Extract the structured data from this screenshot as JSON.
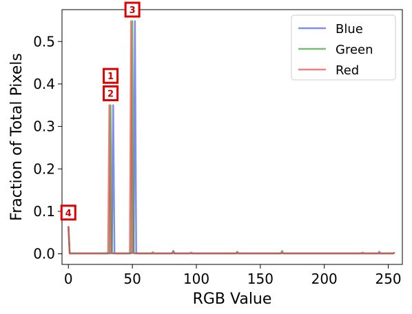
{
  "chart_data": {
    "type": "line",
    "title": "",
    "xlabel": "RGB Value",
    "ylabel": "Fraction of Total Pixels",
    "xlim": [
      -5,
      261
    ],
    "ylim": [
      -0.025,
      0.575
    ],
    "xticks": [
      0,
      50,
      100,
      150,
      200,
      250
    ],
    "yticks": [
      0.0,
      0.1,
      0.2,
      0.3,
      0.4,
      0.5
    ],
    "grid": false,
    "legend_position": "top-right",
    "series": [
      {
        "name": "Blue",
        "color": "#4a5ae8",
        "points": [
          [
            0,
            0.065
          ],
          [
            1,
            0.001
          ],
          [
            33,
            0.001
          ],
          [
            34,
            0.002
          ],
          [
            35,
            0.35
          ],
          [
            36,
            0.002
          ],
          [
            37,
            0.001
          ],
          [
            49,
            0.001
          ],
          [
            50,
            0.002
          ],
          [
            51,
            0.003
          ],
          [
            52,
            0.548
          ],
          [
            53,
            0.003
          ],
          [
            54,
            0.001
          ],
          [
            81,
            0.001
          ],
          [
            82,
            0.007
          ],
          [
            83,
            0.001
          ],
          [
            95,
            0.001
          ],
          [
            96,
            0.003
          ],
          [
            97,
            0.001
          ],
          [
            131,
            0.001
          ],
          [
            132,
            0.003
          ],
          [
            133,
            0.001
          ],
          [
            166,
            0.001
          ],
          [
            167,
            0.003
          ],
          [
            168,
            0.001
          ],
          [
            229,
            0.001
          ],
          [
            230,
            0.003
          ],
          [
            231,
            0.001
          ],
          [
            242,
            0.001
          ],
          [
            243,
            0.005
          ],
          [
            244,
            0.001
          ],
          [
            254,
            0.001
          ],
          [
            255,
            0.003
          ]
        ]
      },
      {
        "name": "Green",
        "color": "#3aa03a",
        "points": [
          [
            0,
            0.065
          ],
          [
            1,
            0.001
          ],
          [
            32,
            0.001
          ],
          [
            33,
            0.35
          ],
          [
            34,
            0.002
          ],
          [
            35,
            0.001
          ],
          [
            48,
            0.001
          ],
          [
            49,
            0.002
          ],
          [
            50,
            0.548
          ],
          [
            51,
            0.003
          ],
          [
            52,
            0.001
          ],
          [
            81,
            0.001
          ],
          [
            82,
            0.004
          ],
          [
            83,
            0.001
          ],
          [
            131,
            0.001
          ],
          [
            132,
            0.005
          ],
          [
            133,
            0.001
          ],
          [
            166,
            0.001
          ],
          [
            167,
            0.007
          ],
          [
            168,
            0.001
          ],
          [
            254,
            0.001
          ],
          [
            255,
            0.003
          ]
        ]
      },
      {
        "name": "Red",
        "color": "#e84a4a",
        "points": [
          [
            0,
            0.065
          ],
          [
            1,
            0.001
          ],
          [
            30,
            0.001
          ],
          [
            31,
            0.004
          ],
          [
            32,
            0.35
          ],
          [
            33,
            0.003
          ],
          [
            34,
            0.001
          ],
          [
            47,
            0.001
          ],
          [
            48,
            0.002
          ],
          [
            49,
            0.548
          ],
          [
            50,
            0.004
          ],
          [
            51,
            0.001
          ],
          [
            65,
            0.001
          ],
          [
            66,
            0.004
          ],
          [
            67,
            0.001
          ],
          [
            95,
            0.001
          ],
          [
            96,
            0.002
          ],
          [
            97,
            0.001
          ],
          [
            254,
            0.001
          ],
          [
            255,
            0.003
          ]
        ]
      }
    ],
    "annotations": [
      {
        "label": "1",
        "x": 33,
        "y": 0.419
      },
      {
        "label": "2",
        "x": 33,
        "y": 0.378
      },
      {
        "label": "3",
        "x": 50,
        "y": 0.575
      },
      {
        "label": "4",
        "x": 0,
        "y": 0.097
      }
    ]
  }
}
